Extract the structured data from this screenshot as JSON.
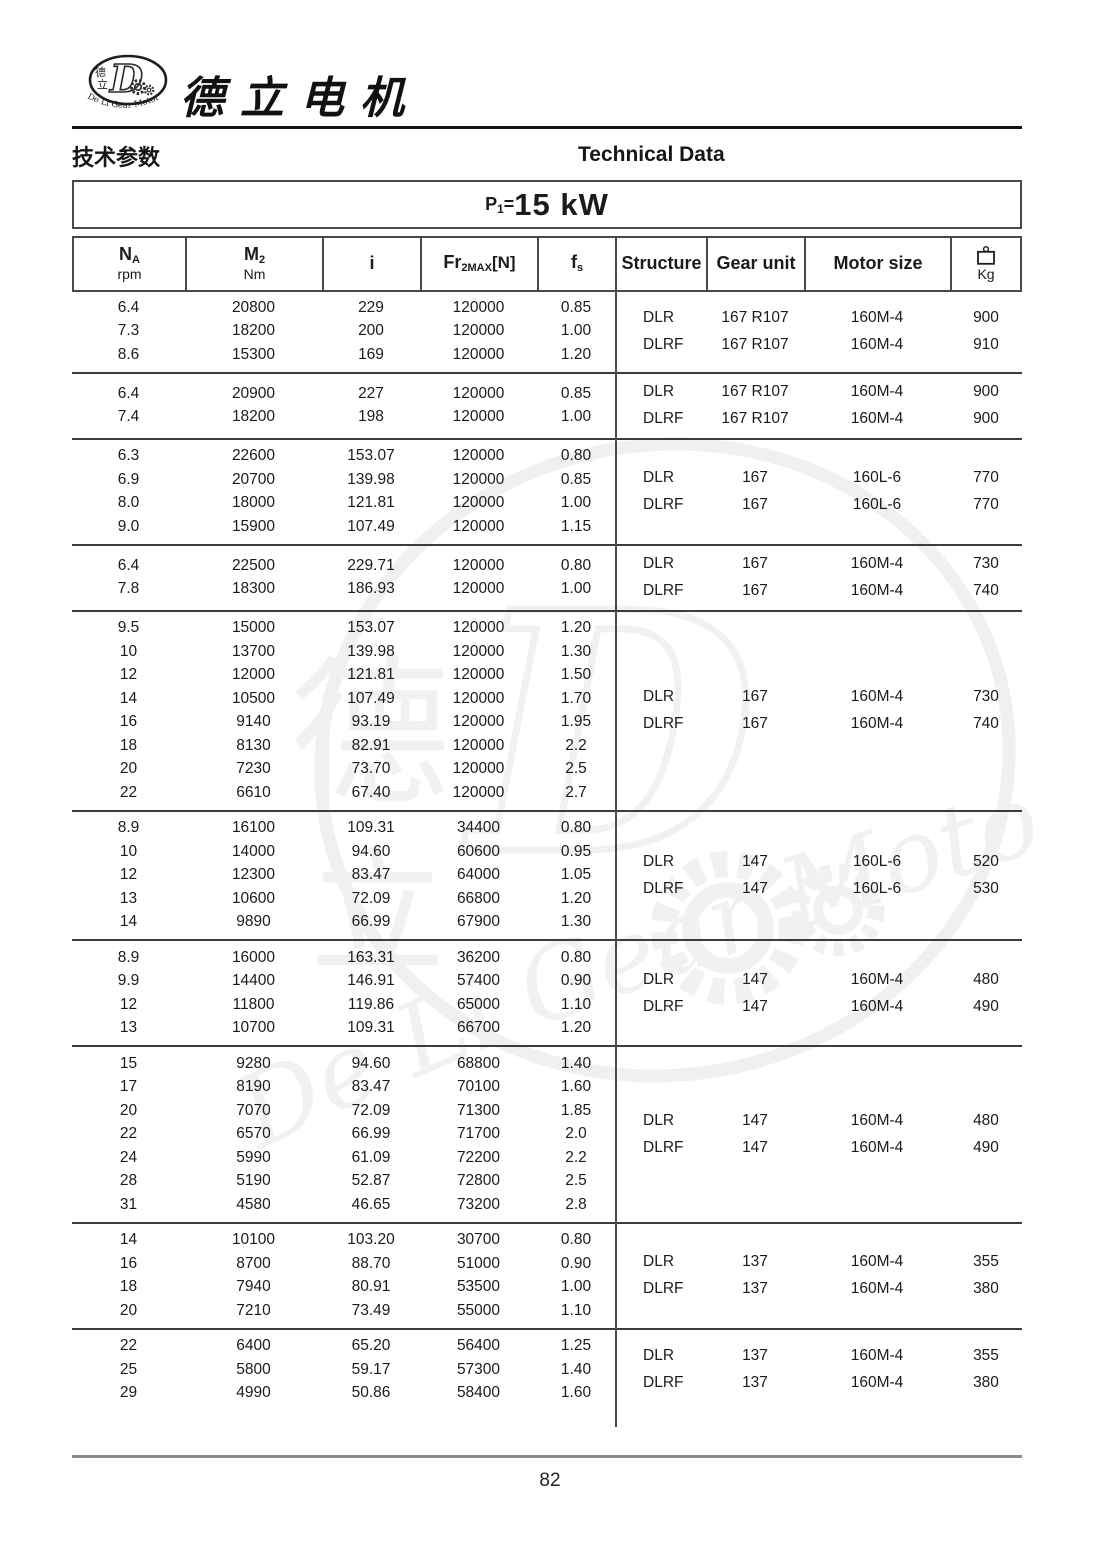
{
  "brand": {
    "company_name": "德立电机",
    "logo_cn_top": "德",
    "logo_cn_bottom": "立",
    "logo_letter": "D",
    "logo_arc_text": "De Li Gear Motor"
  },
  "titles": {
    "section_cn": "技术参数",
    "section_en": "Technical Data",
    "power_p": "P",
    "power_sub": "1",
    "power_eq": "=",
    "power_value": "15 kW"
  },
  "table": {
    "columns": [
      {
        "main": "N",
        "sub": "A",
        "unit": "rpm"
      },
      {
        "main": "M",
        "sub": "2",
        "unit": "Nm"
      },
      {
        "main": "i"
      },
      {
        "main": "Fr",
        "sub": "2MAX",
        "suffix": "[N]"
      },
      {
        "main": "f",
        "sub": "s"
      },
      {
        "main": "Structure"
      },
      {
        "main": "Gear unit"
      },
      {
        "main": "Motor size"
      },
      {
        "icon": "weight-icon",
        "unit": "Kg"
      }
    ],
    "groups": [
      {
        "rows": [
          [
            "6.4",
            "20800",
            "229",
            "120000",
            "0.85"
          ],
          [
            "7.3",
            "18200",
            "200",
            "120000",
            "1.00"
          ],
          [
            "8.6",
            "15300",
            "169",
            "120000",
            "1.20"
          ]
        ],
        "variants": [
          {
            "structure": "DLR",
            "gear_unit": "167 R107",
            "motor_size": "160M-4",
            "weight": "900"
          },
          {
            "structure": "DLRF",
            "gear_unit": "167 R107",
            "motor_size": "160M-4",
            "weight": "910"
          }
        ]
      },
      {
        "rows": [
          [
            "6.4",
            "20900",
            "227",
            "120000",
            "0.85"
          ],
          [
            "7.4",
            "18200",
            "198",
            "120000",
            "1.00"
          ]
        ],
        "variants": [
          {
            "structure": "DLR",
            "gear_unit": "167 R107",
            "motor_size": "160M-4",
            "weight": "900"
          },
          {
            "structure": "DLRF",
            "gear_unit": "167 R107",
            "motor_size": "160M-4",
            "weight": "900"
          }
        ]
      },
      {
        "rows": [
          [
            "6.3",
            "22600",
            "153.07",
            "120000",
            "0.80"
          ],
          [
            "6.9",
            "20700",
            "139.98",
            "120000",
            "0.85"
          ],
          [
            "8.0",
            "18000",
            "121.81",
            "120000",
            "1.00"
          ],
          [
            "9.0",
            "15900",
            "107.49",
            "120000",
            "1.15"
          ]
        ],
        "variants": [
          {
            "structure": "DLR",
            "gear_unit": "167",
            "motor_size": "160L-6",
            "weight": "770"
          },
          {
            "structure": "DLRF",
            "gear_unit": "167",
            "motor_size": "160L-6",
            "weight": "770"
          }
        ]
      },
      {
        "rows": [
          [
            "6.4",
            "22500",
            "229.71",
            "120000",
            "0.80"
          ],
          [
            "7.8",
            "18300",
            "186.93",
            "120000",
            "1.00"
          ]
        ],
        "variants": [
          {
            "structure": "DLR",
            "gear_unit": "167",
            "motor_size": "160M-4",
            "weight": "730"
          },
          {
            "structure": "DLRF",
            "gear_unit": "167",
            "motor_size": "160M-4",
            "weight": "740"
          }
        ]
      },
      {
        "rows": [
          [
            "9.5",
            "15000",
            "153.07",
            "120000",
            "1.20"
          ],
          [
            "10",
            "13700",
            "139.98",
            "120000",
            "1.30"
          ],
          [
            "12",
            "12000",
            "121.81",
            "120000",
            "1.50"
          ],
          [
            "14",
            "10500",
            "107.49",
            "120000",
            "1.70"
          ],
          [
            "16",
            "9140",
            "93.19",
            "120000",
            "1.95"
          ],
          [
            "18",
            "8130",
            "82.91",
            "120000",
            "2.2"
          ],
          [
            "20",
            "7230",
            "73.70",
            "120000",
            "2.5"
          ],
          [
            "22",
            "6610",
            "67.40",
            "120000",
            "2.7"
          ]
        ],
        "variants": [
          {
            "structure": "DLR",
            "gear_unit": "167",
            "motor_size": "160M-4",
            "weight": "730"
          },
          {
            "structure": "DLRF",
            "gear_unit": "167",
            "motor_size": "160M-4",
            "weight": "740"
          }
        ]
      },
      {
        "rows": [
          [
            "8.9",
            "16100",
            "109.31",
            "34400",
            "0.80"
          ],
          [
            "10",
            "14000",
            "94.60",
            "60600",
            "0.95"
          ],
          [
            "12",
            "12300",
            "83.47",
            "64000",
            "1.05"
          ],
          [
            "13",
            "10600",
            "72.09",
            "66800",
            "1.20"
          ],
          [
            "14",
            "9890",
            "66.99",
            "67900",
            "1.30"
          ]
        ],
        "variants": [
          {
            "structure": "DLR",
            "gear_unit": "147",
            "motor_size": "160L-6",
            "weight": "520"
          },
          {
            "structure": "DLRF",
            "gear_unit": "147",
            "motor_size": "160L-6",
            "weight": "530"
          }
        ]
      },
      {
        "rows": [
          [
            "8.9",
            "16000",
            "163.31",
            "36200",
            "0.80"
          ],
          [
            "9.9",
            "14400",
            "146.91",
            "57400",
            "0.90"
          ],
          [
            "12",
            "11800",
            "119.86",
            "65000",
            "1.10"
          ],
          [
            "13",
            "10700",
            "109.31",
            "66700",
            "1.20"
          ]
        ],
        "variants": [
          {
            "structure": "DLR",
            "gear_unit": "147",
            "motor_size": "160M-4",
            "weight": "480"
          },
          {
            "structure": "DLRF",
            "gear_unit": "147",
            "motor_size": "160M-4",
            "weight": "490"
          }
        ]
      },
      {
        "rows": [
          [
            "15",
            "9280",
            "94.60",
            "68800",
            "1.40"
          ],
          [
            "17",
            "8190",
            "83.47",
            "70100",
            "1.60"
          ],
          [
            "20",
            "7070",
            "72.09",
            "71300",
            "1.85"
          ],
          [
            "22",
            "6570",
            "66.99",
            "71700",
            "2.0"
          ],
          [
            "24",
            "5990",
            "61.09",
            "72200",
            "2.2"
          ],
          [
            "28",
            "5190",
            "52.87",
            "72800",
            "2.5"
          ],
          [
            "31",
            "4580",
            "46.65",
            "73200",
            "2.8"
          ]
        ],
        "variants": [
          {
            "structure": "DLR",
            "gear_unit": "147",
            "motor_size": "160M-4",
            "weight": "480"
          },
          {
            "structure": "DLRF",
            "gear_unit": "147",
            "motor_size": "160M-4",
            "weight": "490"
          }
        ]
      },
      {
        "rows": [
          [
            "14",
            "10100",
            "103.20",
            "30700",
            "0.80"
          ],
          [
            "16",
            "8700",
            "88.70",
            "51000",
            "0.90"
          ],
          [
            "18",
            "7940",
            "80.91",
            "53500",
            "1.00"
          ],
          [
            "20",
            "7210",
            "73.49",
            "55000",
            "1.10"
          ]
        ],
        "variants": [
          {
            "structure": "DLR",
            "gear_unit": "137",
            "motor_size": "160M-4",
            "weight": "355"
          },
          {
            "structure": "DLRF",
            "gear_unit": "137",
            "motor_size": "160M-4",
            "weight": "380"
          }
        ]
      },
      {
        "rows": [
          [
            "22",
            "6400",
            "65.20",
            "56400",
            "1.25"
          ],
          [
            "25",
            "5800",
            "59.17",
            "57300",
            "1.40"
          ],
          [
            "29",
            "4990",
            "50.86",
            "58400",
            "1.60"
          ]
        ],
        "variants": [
          {
            "structure": "DLR",
            "gear_unit": "137",
            "motor_size": "160M-4",
            "weight": "355"
          },
          {
            "structure": "DLRF",
            "gear_unit": "137",
            "motor_size": "160M-4",
            "weight": "380"
          }
        ]
      }
    ]
  },
  "watermark": {
    "cn_top": "德",
    "cn_bottom": "立",
    "letter": "D",
    "arc_text": "De Li Gear Motor"
  },
  "footer": {
    "page_number": "82"
  }
}
